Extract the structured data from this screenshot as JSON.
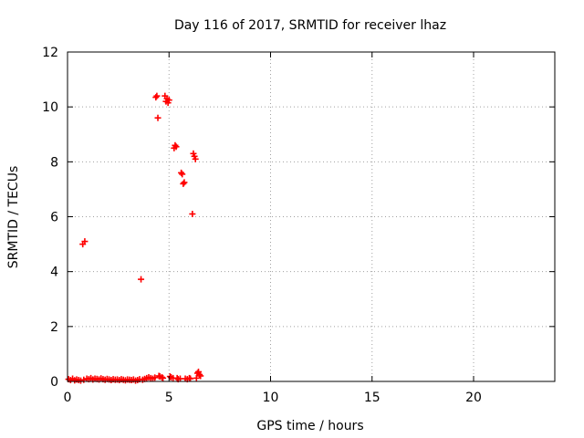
{
  "chart_data": {
    "type": "scatter",
    "title": "Day 116 of 2017, SRMTID for receiver lhaz",
    "xlabel": "GPS time / hours",
    "ylabel": "SRMTID / TECUs",
    "xlim": [
      0,
      24
    ],
    "ylim": [
      0,
      12
    ],
    "grid": true,
    "x_ticks": [
      "0",
      "5",
      "10",
      "15",
      "20"
    ],
    "y_ticks": [
      "0",
      "2",
      "4",
      "6",
      "8",
      "10",
      "12"
    ],
    "marker_color": "#ff0000",
    "points": [
      [
        0.05,
        0.08
      ],
      [
        0.15,
        0.05
      ],
      [
        0.25,
        0.1
      ],
      [
        0.35,
        0.04
      ],
      [
        0.45,
        0.07
      ],
      [
        0.55,
        0.05
      ],
      [
        0.65,
        0.03
      ],
      [
        0.75,
        5.0
      ],
      [
        0.85,
        5.1
      ],
      [
        0.8,
        0.06
      ],
      [
        0.95,
        0.1
      ],
      [
        1.05,
        0.08
      ],
      [
        1.15,
        0.12
      ],
      [
        1.25,
        0.07
      ],
      [
        1.35,
        0.1
      ],
      [
        1.45,
        0.09
      ],
      [
        1.55,
        0.07
      ],
      [
        1.65,
        0.11
      ],
      [
        1.75,
        0.08
      ],
      [
        1.85,
        0.06
      ],
      [
        1.95,
        0.09
      ],
      [
        2.05,
        0.07
      ],
      [
        2.15,
        0.05
      ],
      [
        2.25,
        0.08
      ],
      [
        2.35,
        0.06
      ],
      [
        2.45,
        0.07
      ],
      [
        2.55,
        0.05
      ],
      [
        2.65,
        0.08
      ],
      [
        2.75,
        0.06
      ],
      [
        2.85,
        0.04
      ],
      [
        2.95,
        0.07
      ],
      [
        3.05,
        0.06
      ],
      [
        3.15,
        0.05
      ],
      [
        3.25,
        0.07
      ],
      [
        3.35,
        0.03
      ],
      [
        3.45,
        0.05
      ],
      [
        3.55,
        0.08
      ],
      [
        3.62,
        3.72
      ],
      [
        3.7,
        0.06
      ],
      [
        3.8,
        0.09
      ],
      [
        3.9,
        0.12
      ],
      [
        4.0,
        0.15
      ],
      [
        4.1,
        0.12
      ],
      [
        4.2,
        0.1
      ],
      [
        4.3,
        0.14
      ],
      [
        4.35,
        10.35
      ],
      [
        4.4,
        10.4
      ],
      [
        4.45,
        9.6
      ],
      [
        4.5,
        0.2
      ],
      [
        4.55,
        0.18
      ],
      [
        4.65,
        0.15
      ],
      [
        4.7,
        0.12
      ],
      [
        4.8,
        10.4
      ],
      [
        4.85,
        10.2
      ],
      [
        4.9,
        10.3
      ],
      [
        4.95,
        10.15
      ],
      [
        5.0,
        10.25
      ],
      [
        5.05,
        0.18
      ],
      [
        5.1,
        0.15
      ],
      [
        5.2,
        0.12
      ],
      [
        5.25,
        8.5
      ],
      [
        5.3,
        8.6
      ],
      [
        5.35,
        8.55
      ],
      [
        5.4,
        0.12
      ],
      [
        5.45,
        0.08
      ],
      [
        5.55,
        0.1
      ],
      [
        5.6,
        7.6
      ],
      [
        5.65,
        7.55
      ],
      [
        5.7,
        7.2
      ],
      [
        5.75,
        7.25
      ],
      [
        5.8,
        0.1
      ],
      [
        5.9,
        0.08
      ],
      [
        6.0,
        0.12
      ],
      [
        6.05,
        0.1
      ],
      [
        6.15,
        6.1
      ],
      [
        6.2,
        8.3
      ],
      [
        6.25,
        8.2
      ],
      [
        6.3,
        8.1
      ],
      [
        6.35,
        0.12
      ],
      [
        6.4,
        0.3
      ],
      [
        6.45,
        0.35
      ],
      [
        6.5,
        0.25
      ],
      [
        6.55,
        0.2
      ]
    ]
  }
}
